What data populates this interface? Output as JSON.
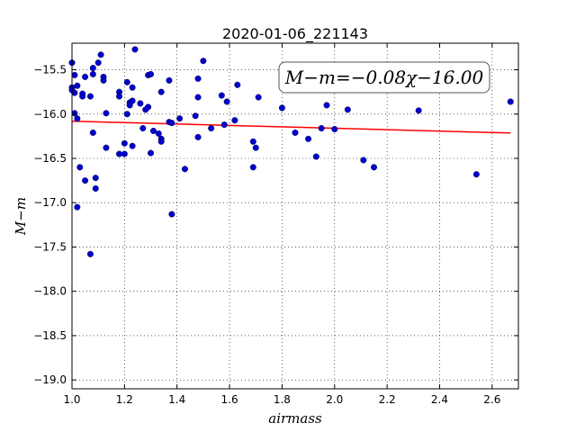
{
  "chart_data": {
    "type": "scatter",
    "title": "2020-01-06_221143",
    "xlabel": "airmass",
    "ylabel": "M−m",
    "xlim": [
      1.0,
      2.7
    ],
    "ylim": [
      -19.1,
      -15.2
    ],
    "grid": true,
    "x_ticks": [
      "1.0",
      "1.2",
      "1.4",
      "1.6",
      "1.8",
      "2.0",
      "2.2",
      "2.4",
      "2.6"
    ],
    "y_ticks": [
      "−15.5",
      "−16.0",
      "−16.5",
      "−17.0",
      "−17.5",
      "−18.0",
      "−18.5",
      "−19.0"
    ],
    "annotation": "M−m=−0.08χ−16.00",
    "fit": {
      "slope": -0.08,
      "intercept": -16.0,
      "color": "#ff0000"
    },
    "point_color": "#0000cc",
    "points": [
      [
        1.0,
        -15.42
      ],
      [
        1.0,
        -15.7
      ],
      [
        1.0,
        -15.73
      ],
      [
        1.01,
        -15.76
      ],
      [
        1.01,
        -15.56
      ],
      [
        1.01,
        -15.99
      ],
      [
        1.02,
        -15.68
      ],
      [
        1.02,
        -16.05
      ],
      [
        1.02,
        -17.05
      ],
      [
        1.03,
        -16.6
      ],
      [
        1.04,
        -15.77
      ],
      [
        1.04,
        -15.8
      ],
      [
        1.05,
        -15.58
      ],
      [
        1.05,
        -16.75
      ],
      [
        1.07,
        -15.8
      ],
      [
        1.07,
        -17.58
      ],
      [
        1.08,
        -15.48
      ],
      [
        1.08,
        -16.21
      ],
      [
        1.08,
        -15.55
      ],
      [
        1.09,
        -16.72
      ],
      [
        1.09,
        -16.84
      ],
      [
        1.1,
        -15.42
      ],
      [
        1.11,
        -15.33
      ],
      [
        1.12,
        -15.58
      ],
      [
        1.12,
        -15.62
      ],
      [
        1.13,
        -15.99
      ],
      [
        1.13,
        -16.38
      ],
      [
        1.18,
        -15.75
      ],
      [
        1.18,
        -15.8
      ],
      [
        1.18,
        -16.45
      ],
      [
        1.2,
        -16.45
      ],
      [
        1.2,
        -16.33
      ],
      [
        1.21,
        -15.64
      ],
      [
        1.21,
        -16.0
      ],
      [
        1.22,
        -15.87
      ],
      [
        1.22,
        -15.9
      ],
      [
        1.23,
        -15.7
      ],
      [
        1.23,
        -15.85
      ],
      [
        1.23,
        -16.36
      ],
      [
        1.24,
        -15.27
      ],
      [
        1.26,
        -15.88
      ],
      [
        1.27,
        -16.16
      ],
      [
        1.28,
        -15.95
      ],
      [
        1.29,
        -15.92
      ],
      [
        1.29,
        -15.56
      ],
      [
        1.3,
        -15.55
      ],
      [
        1.3,
        -16.44
      ],
      [
        1.31,
        -16.19
      ],
      [
        1.33,
        -16.22
      ],
      [
        1.34,
        -15.75
      ],
      [
        1.34,
        -16.28
      ],
      [
        1.34,
        -16.31
      ],
      [
        1.37,
        -15.62
      ],
      [
        1.37,
        -16.09
      ],
      [
        1.38,
        -16.1
      ],
      [
        1.38,
        -17.13
      ],
      [
        1.41,
        -16.05
      ],
      [
        1.43,
        -16.62
      ],
      [
        1.47,
        -16.02
      ],
      [
        1.48,
        -15.6
      ],
      [
        1.48,
        -15.81
      ],
      [
        1.48,
        -16.26
      ],
      [
        1.5,
        -15.4
      ],
      [
        1.53,
        -16.16
      ],
      [
        1.57,
        -15.79
      ],
      [
        1.58,
        -16.12
      ],
      [
        1.59,
        -15.86
      ],
      [
        1.62,
        -16.07
      ],
      [
        1.63,
        -15.67
      ],
      [
        1.69,
        -16.31
      ],
      [
        1.69,
        -16.6
      ],
      [
        1.7,
        -16.38
      ],
      [
        1.71,
        -15.81
      ],
      [
        1.8,
        -15.93
      ],
      [
        1.85,
        -16.21
      ],
      [
        1.9,
        -16.28
      ],
      [
        1.93,
        -16.48
      ],
      [
        1.95,
        -16.16
      ],
      [
        1.97,
        -15.9
      ],
      [
        2.0,
        -16.17
      ],
      [
        2.05,
        -15.95
      ],
      [
        2.11,
        -16.52
      ],
      [
        2.15,
        -16.6
      ],
      [
        2.32,
        -15.96
      ],
      [
        2.54,
        -16.68
      ],
      [
        2.67,
        -15.86
      ]
    ]
  }
}
